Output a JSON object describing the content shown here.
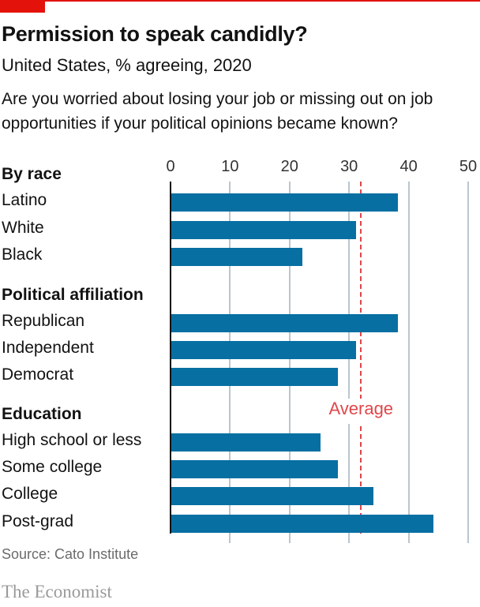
{
  "header": {
    "title": "Permission to speak candidly?",
    "subtitle": "United States, % agreeing, 2020",
    "question": "Are you worried about losing your job or missing out on job opportunities if your political opinions became known?"
  },
  "chart_data": {
    "type": "bar",
    "orientation": "horizontal",
    "xlim": [
      0,
      50
    ],
    "ticks": [
      "0",
      "10",
      "20",
      "30",
      "40",
      "50"
    ],
    "grid": true,
    "groups": [
      {
        "name": "By race",
        "categories": [
          "Latino",
          "White",
          "Black"
        ],
        "values": [
          38,
          31,
          22
        ]
      },
      {
        "name": "Political affiliation",
        "categories": [
          "Republican",
          "Independent",
          "Democrat"
        ],
        "values": [
          38,
          31,
          28
        ]
      },
      {
        "name": "Education",
        "categories": [
          "High school or less",
          "Some college",
          "College",
          "Post-grad"
        ],
        "values": [
          25,
          28,
          34,
          44
        ]
      }
    ],
    "reference_line": {
      "label": "Average",
      "value": 32
    }
  },
  "colors": {
    "bar": "#076fa2",
    "average": "#e0464a",
    "brand": "#e3120b"
  },
  "footer": {
    "source": "Source: Cato Institute",
    "brand": "The Economist"
  }
}
